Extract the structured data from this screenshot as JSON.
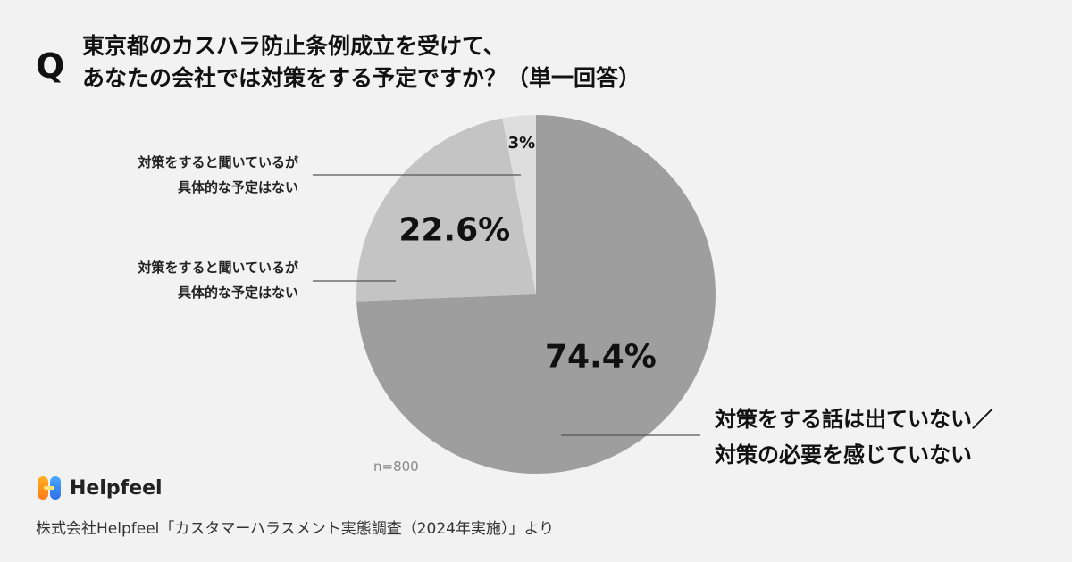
{
  "question": {
    "mark": "Q",
    "line1": "東京都のカスハラ防止条例成立を受けて、",
    "line2": "あなたの会社では対策をする予定ですか？（単一回答）"
  },
  "chart_data": {
    "type": "pie",
    "slices": [
      {
        "label": "対策をする話は出ていない／対策の必要を感じていない",
        "value": 74.4,
        "display": "74.4%",
        "color": "#9e9e9e"
      },
      {
        "label": "対策をすると聞いているが具体的な予定はない",
        "value": 22.6,
        "display": "22.6%",
        "color": "#c4c4c4"
      },
      {
        "label": "対策をすると聞いているが具体的な予定はない",
        "value": 3,
        "display": "3%",
        "color": "#dedede"
      }
    ],
    "n": "n=800"
  },
  "labels": {
    "small_top": {
      "line1": "対策をすると聞いているが",
      "line2": "具体的な予定はない"
    },
    "small_mid": {
      "line1": "対策をすると聞いているが",
      "line2": "具体的な予定はない"
    },
    "big": {
      "line1": "対策をする話は出ていない／",
      "line2": "対策の必要を感じていない"
    }
  },
  "brand": {
    "name": "Helpfeel"
  },
  "source": "株式会社Helpfeel「カスタマーハラスメント実態調査（2024年実施）」より",
  "colors": {
    "background": "#f2f2f2",
    "leader_line": "#555555",
    "text": "#111111"
  }
}
